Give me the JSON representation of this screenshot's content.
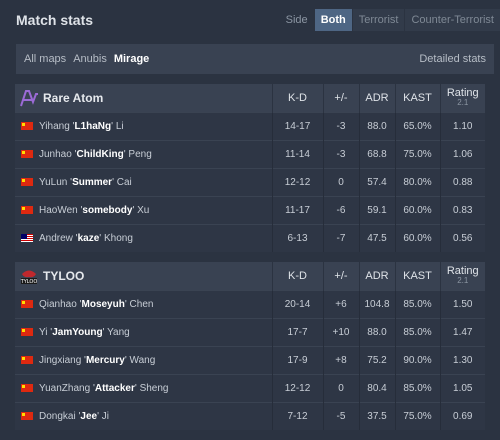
{
  "header": {
    "title": "Match stats",
    "side_label": "Side",
    "side_options": [
      "Both",
      "Terrorist",
      "Counter-Terrorist"
    ],
    "side_active": "Both"
  },
  "maps": {
    "items": [
      "All maps",
      "Anubis",
      "Mirage"
    ],
    "active": "Mirage",
    "detailed_label": "Detailed stats"
  },
  "columns": {
    "kd": "K-D",
    "pm": "+/-",
    "adr": "ADR",
    "kast": "KAST",
    "rating": "Rating",
    "rating_sub": "2.1"
  },
  "teams": [
    {
      "name": "Rare Atom",
      "logo": "rare-atom-logo",
      "players": [
        {
          "flag": "cn",
          "first": "Yihang",
          "nick": "L1haNg",
          "last": "Li",
          "kd": "14-17",
          "pm": "-3",
          "adr": "88.0",
          "kast": "65.0%",
          "rating": "1.10"
        },
        {
          "flag": "cn",
          "first": "Junhao",
          "nick": "ChildKing",
          "last": "Peng",
          "kd": "11-14",
          "pm": "-3",
          "adr": "68.8",
          "kast": "75.0%",
          "rating": "1.06"
        },
        {
          "flag": "cn",
          "first": "YuLun",
          "nick": "Summer",
          "last": "Cai",
          "kd": "12-12",
          "pm": "0",
          "adr": "57.4",
          "kast": "80.0%",
          "rating": "0.88"
        },
        {
          "flag": "cn",
          "first": "HaoWen",
          "nick": "somebody",
          "last": "Xu",
          "kd": "11-17",
          "pm": "-6",
          "adr": "59.1",
          "kast": "60.0%",
          "rating": "0.83"
        },
        {
          "flag": "my",
          "first": "Andrew",
          "nick": "kaze",
          "last": "Khong",
          "kd": "6-13",
          "pm": "-7",
          "adr": "47.5",
          "kast": "60.0%",
          "rating": "0.56"
        }
      ]
    },
    {
      "name": "TYLOO",
      "logo": "tyloo-logo",
      "players": [
        {
          "flag": "cn",
          "first": "Qianhao",
          "nick": "Moseyuh",
          "last": "Chen",
          "kd": "20-14",
          "pm": "+6",
          "adr": "104.8",
          "kast": "85.0%",
          "rating": "1.50"
        },
        {
          "flag": "cn",
          "first": "Yi",
          "nick": "JamYoung",
          "last": "Yang",
          "kd": "17-7",
          "pm": "+10",
          "adr": "88.0",
          "kast": "85.0%",
          "rating": "1.47"
        },
        {
          "flag": "cn",
          "first": "Jingxiang",
          "nick": "Mercury",
          "last": "Wang",
          "kd": "17-9",
          "pm": "+8",
          "adr": "75.2",
          "kast": "90.0%",
          "rating": "1.30"
        },
        {
          "flag": "cn",
          "first": "YuanZhang",
          "nick": "Attacker",
          "last": "Sheng",
          "kd": "12-12",
          "pm": "0",
          "adr": "80.4",
          "kast": "85.0%",
          "rating": "1.05"
        },
        {
          "flag": "cn",
          "first": "Dongkai",
          "nick": "Jee",
          "last": "Ji",
          "kd": "7-12",
          "pm": "-5",
          "adr": "37.5",
          "kast": "75.0%",
          "rating": "0.69"
        }
      ]
    }
  ],
  "colors": {
    "negative": "#e04040",
    "positive": "#4ac94a",
    "active_side": "#4e6684"
  }
}
